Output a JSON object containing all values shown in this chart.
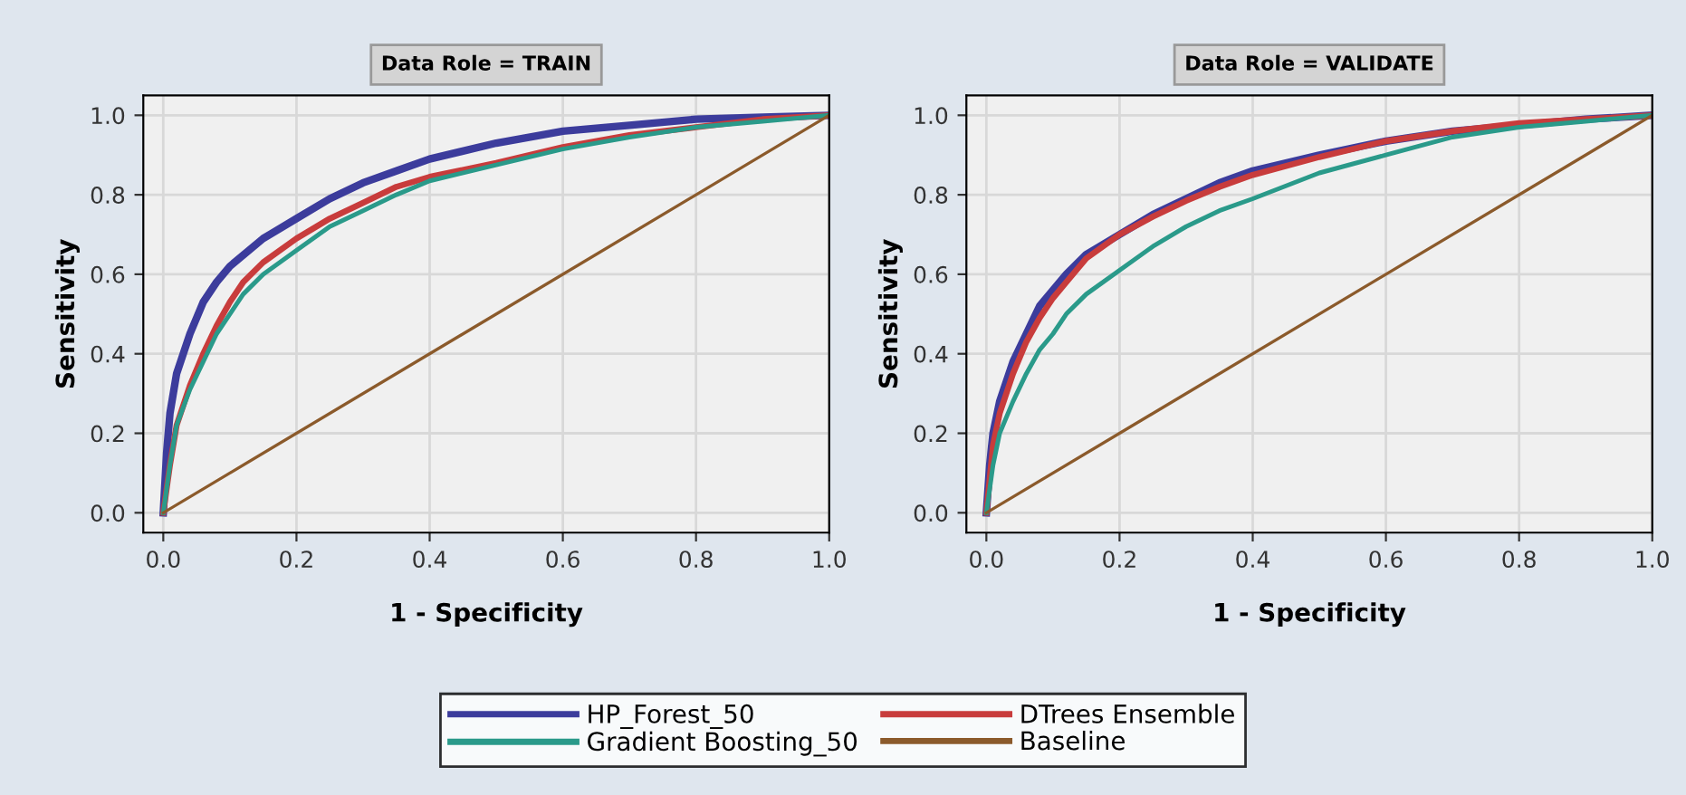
{
  "chart_data": [
    {
      "type": "line",
      "title": "Data Role = TRAIN",
      "xlabel": "1 - Specificity",
      "ylabel": "Sensitivity",
      "xlim": [
        -0.03,
        1.0
      ],
      "ylim": [
        -0.05,
        1.05
      ],
      "xticks": [
        {
          "value": 0,
          "label": "0.0"
        },
        {
          "value": 0.2,
          "label": "0.2"
        },
        {
          "value": 0.4,
          "label": "0.4"
        },
        {
          "value": 0.6,
          "label": "0.6"
        },
        {
          "value": 0.8,
          "label": "0.8"
        },
        {
          "value": 1,
          "label": "1.0"
        }
      ],
      "yticks": [
        {
          "value": 0,
          "label": "0.0"
        },
        {
          "value": 0.2,
          "label": "0.2"
        },
        {
          "value": 0.4,
          "label": "0.4"
        },
        {
          "value": 0.6,
          "label": "0.6"
        },
        {
          "value": 0.8,
          "label": "0.8"
        },
        {
          "value": 1,
          "label": "1.0"
        }
      ],
      "grid": true,
      "legend": "bottom",
      "line_style": "solid",
      "series": [
        {
          "name": "HP_Forest_50",
          "color": "#3c3c9c",
          "x": [
            0,
            0.005,
            0.01,
            0.02,
            0.04,
            0.06,
            0.08,
            0.1,
            0.15,
            0.2,
            0.25,
            0.3,
            0.35,
            0.4,
            0.5,
            0.6,
            0.7,
            0.8,
            0.9,
            1
          ],
          "values": [
            0,
            0.15,
            0.25,
            0.35,
            0.45,
            0.53,
            0.58,
            0.62,
            0.69,
            0.74,
            0.79,
            0.83,
            0.86,
            0.89,
            0.93,
            0.96,
            0.975,
            0.99,
            0.995,
            1
          ]
        },
        {
          "name": "DTrees Ensemble",
          "color": "#c83c3c",
          "x": [
            0,
            0.01,
            0.02,
            0.04,
            0.06,
            0.08,
            0.1,
            0.12,
            0.15,
            0.2,
            0.25,
            0.3,
            0.35,
            0.4,
            0.5,
            0.6,
            0.7,
            0.8,
            0.9,
            1
          ],
          "values": [
            0,
            0.12,
            0.22,
            0.32,
            0.4,
            0.47,
            0.53,
            0.58,
            0.63,
            0.69,
            0.74,
            0.78,
            0.82,
            0.845,
            0.88,
            0.92,
            0.95,
            0.97,
            0.99,
            1
          ]
        },
        {
          "name": "Gradient Boosting_50",
          "color": "#2a9a8a",
          "x": [
            0,
            0.01,
            0.02,
            0.04,
            0.06,
            0.08,
            0.1,
            0.12,
            0.15,
            0.2,
            0.25,
            0.3,
            0.35,
            0.4,
            0.5,
            0.6,
            0.7,
            0.8,
            0.9,
            1
          ],
          "values": [
            0,
            0.12,
            0.22,
            0.31,
            0.38,
            0.45,
            0.5,
            0.55,
            0.6,
            0.66,
            0.72,
            0.76,
            0.8,
            0.835,
            0.875,
            0.915,
            0.945,
            0.97,
            0.985,
            1
          ]
        },
        {
          "name": "Baseline",
          "color": "#8b5a2b",
          "x": [
            0,
            1
          ],
          "values": [
            0,
            1
          ]
        }
      ]
    },
    {
      "type": "line",
      "title": "Data Role = VALIDATE",
      "xlabel": "1 - Specificity",
      "ylabel": "Sensitivity",
      "xlim": [
        -0.03,
        1.0
      ],
      "ylim": [
        -0.05,
        1.05
      ],
      "xticks": [
        {
          "value": 0,
          "label": "0.0"
        },
        {
          "value": 0.2,
          "label": "0.2"
        },
        {
          "value": 0.4,
          "label": "0.4"
        },
        {
          "value": 0.6,
          "label": "0.6"
        },
        {
          "value": 0.8,
          "label": "0.8"
        },
        {
          "value": 1,
          "label": "1.0"
        }
      ],
      "yticks": [
        {
          "value": 0,
          "label": "0.0"
        },
        {
          "value": 0.2,
          "label": "0.2"
        },
        {
          "value": 0.4,
          "label": "0.4"
        },
        {
          "value": 0.6,
          "label": "0.6"
        },
        {
          "value": 0.8,
          "label": "0.8"
        },
        {
          "value": 1,
          "label": "1.0"
        }
      ],
      "grid": true,
      "line_style": "solid",
      "series": [
        {
          "color": "#3c3c9c",
          "x": [
            0,
            0.005,
            0.01,
            0.02,
            0.04,
            0.06,
            0.08,
            0.1,
            0.12,
            0.15,
            0.2,
            0.25,
            0.3,
            0.35,
            0.4,
            0.5,
            0.6,
            0.7,
            0.8,
            0.9,
            1
          ],
          "values": [
            0,
            0.12,
            0.2,
            0.28,
            0.38,
            0.45,
            0.52,
            0.56,
            0.6,
            0.65,
            0.7,
            0.75,
            0.79,
            0.83,
            0.86,
            0.9,
            0.935,
            0.96,
            0.975,
            0.99,
            1
          ]
        },
        {
          "color": "#c83c3c",
          "x": [
            0,
            0.01,
            0.02,
            0.04,
            0.06,
            0.08,
            0.1,
            0.12,
            0.15,
            0.2,
            0.25,
            0.3,
            0.35,
            0.4,
            0.5,
            0.6,
            0.7,
            0.8,
            0.9,
            1
          ],
          "values": [
            0,
            0.17,
            0.25,
            0.35,
            0.43,
            0.49,
            0.54,
            0.58,
            0.64,
            0.7,
            0.745,
            0.785,
            0.82,
            0.85,
            0.895,
            0.935,
            0.96,
            0.98,
            0.99,
            1
          ]
        },
        {
          "color": "#2a9a8a",
          "x": [
            0,
            0.01,
            0.02,
            0.04,
            0.06,
            0.08,
            0.1,
            0.12,
            0.15,
            0.2,
            0.25,
            0.3,
            0.35,
            0.4,
            0.5,
            0.6,
            0.7,
            0.8,
            0.9,
            1
          ],
          "values": [
            0,
            0.12,
            0.2,
            0.28,
            0.35,
            0.41,
            0.45,
            0.5,
            0.55,
            0.61,
            0.67,
            0.72,
            0.76,
            0.79,
            0.855,
            0.9,
            0.945,
            0.97,
            0.985,
            1
          ]
        },
        {
          "color": "#8b5a2b",
          "x": [
            0,
            1
          ],
          "values": [
            0,
            1
          ]
        }
      ]
    }
  ]
}
